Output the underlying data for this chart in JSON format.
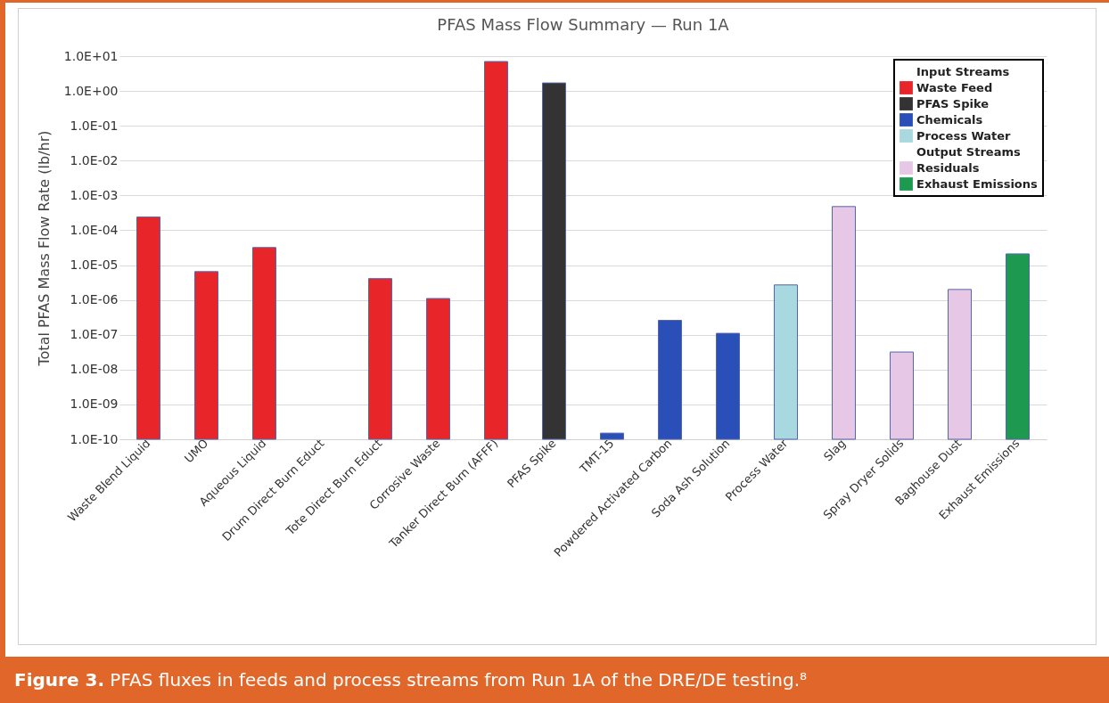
{
  "chart_data": {
    "type": "bar",
    "title": "PFAS Mass Flow Summary — Run 1A",
    "ylabel": "Total PFAS Mass Flow Rate (lb/hr)",
    "categories": [
      "Waste Blend Liquid",
      "UMO",
      "Aqueous Liquid",
      "Drum Direct Burn Educt",
      "Tote Direct Burn Educt",
      "Corrosive Waste",
      "Tanker Direct Burn (AFFF)",
      "PFAS Spike",
      "TMT-15",
      "Powdered Activated Carbon",
      "Soda Ash Solution",
      "Process Water",
      "Slag",
      "Spray Dryer Solids",
      "Baghouse Dust",
      "Exhaust Emissions"
    ],
    "series": [
      {
        "name": "Waste Feed",
        "color": "#e8262a",
        "values": [
          0.00024,
          6.5e-06,
          3.2e-05,
          null,
          4.1e-06,
          1.1e-06,
          7,
          null,
          null,
          null,
          null,
          null,
          null,
          null,
          null,
          null
        ]
      },
      {
        "name": "PFAS Spike",
        "color": "#333333",
        "values": [
          null,
          null,
          null,
          null,
          null,
          null,
          null,
          1.7,
          null,
          null,
          null,
          null,
          null,
          null,
          null,
          null
        ]
      },
      {
        "name": "Chemicals",
        "color": "#2a4fb8",
        "values": [
          null,
          null,
          null,
          null,
          null,
          null,
          null,
          null,
          1.5e-10,
          2.6e-07,
          1.1e-07,
          null,
          null,
          null,
          null,
          null
        ]
      },
      {
        "name": "Process Water",
        "color": "#a8d8e0",
        "values": [
          null,
          null,
          null,
          null,
          null,
          null,
          null,
          null,
          null,
          null,
          null,
          2.7e-06,
          null,
          null,
          null,
          null
        ]
      },
      {
        "name": "Residuals",
        "color": "#e6c8e6",
        "values": [
          null,
          null,
          null,
          null,
          null,
          null,
          null,
          null,
          null,
          null,
          null,
          null,
          0.00048,
          3.2e-08,
          2e-06,
          null
        ]
      },
      {
        "name": "Exhaust Emissions",
        "color": "#1e9a50",
        "values": [
          null,
          null,
          null,
          null,
          null,
          null,
          null,
          null,
          null,
          null,
          null,
          null,
          null,
          null,
          null,
          2.1e-05
        ]
      }
    ],
    "log": true,
    "ylim": [
      1e-10,
      10
    ],
    "yticks": [
      {
        "value": 1e-10,
        "label": "1.0E-10"
      },
      {
        "value": 1e-09,
        "label": "1.0E-09"
      },
      {
        "value": 1e-08,
        "label": "1.0E-08"
      },
      {
        "value": 1e-07,
        "label": "1.0E-07"
      },
      {
        "value": 1e-06,
        "label": "1.0E-06"
      },
      {
        "value": 1e-05,
        "label": "1.0E-05"
      },
      {
        "value": 0.0001,
        "label": "1.0E-04"
      },
      {
        "value": 0.001,
        "label": "1.0E-03"
      },
      {
        "value": 0.01,
        "label": "1.0E-02"
      },
      {
        "value": 0.1,
        "label": "1.0E-01"
      },
      {
        "value": 1,
        "label": "1.0E+00"
      },
      {
        "value": 10,
        "label": "1.0E+01"
      }
    ],
    "grid": "y",
    "legend": "top right",
    "annotations": [
      "Input Streams",
      "Output Streams",
      "Figure 3. PFAS fluxes in feeds and process streams from Run 1A of the DRE/DE testing.⁸"
    ]
  }
}
